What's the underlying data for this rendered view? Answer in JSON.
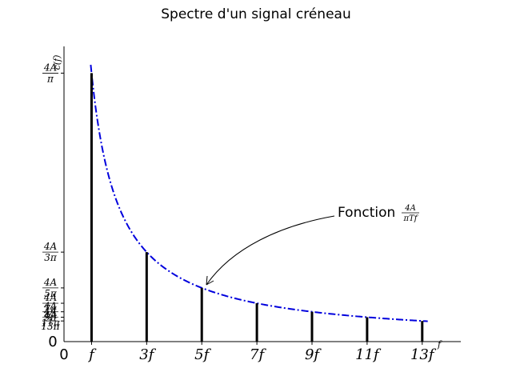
{
  "chart_data": {
    "type": "bar",
    "title": "Spectre d'un signal créneau",
    "xlabel": "f",
    "ylabel": "c(f)",
    "origin_x_label": "0",
    "origin_y_label": "0",
    "xlim": [
      0,
      14.4
    ],
    "ylim": [
      0,
      1.4
    ],
    "x": [
      1,
      3,
      5,
      7,
      9,
      11,
      13
    ],
    "x_tick_labels": [
      "f",
      "3f",
      "5f",
      "7f",
      "9f",
      "11f",
      "13f"
    ],
    "values": [
      1.2732,
      0.4244,
      0.2546,
      0.1819,
      0.1415,
      0.1157,
      0.0979
    ],
    "y_tick_labels": [
      {
        "num": "4A",
        "den": "π"
      },
      {
        "num": "4A",
        "den": "3π"
      },
      {
        "num": "4A",
        "den": "5π"
      },
      {
        "num": "4A",
        "den": "7π"
      },
      {
        "num": "4A",
        "den": "9π"
      },
      {
        "num": "4A",
        "den": "11π"
      },
      {
        "num": "4A",
        "den": "13π"
      }
    ],
    "envelope": {
      "formula": "4/(π·x)",
      "x_range": [
        0.97,
        13.2
      ],
      "color": "#0000dd",
      "style": "dash-dot"
    },
    "bar_color": "#000000",
    "annotation": {
      "text": "Fonction ",
      "num": "4A",
      "den": "πTf",
      "target_x": 5
    },
    "grid": false,
    "legend": "none"
  }
}
